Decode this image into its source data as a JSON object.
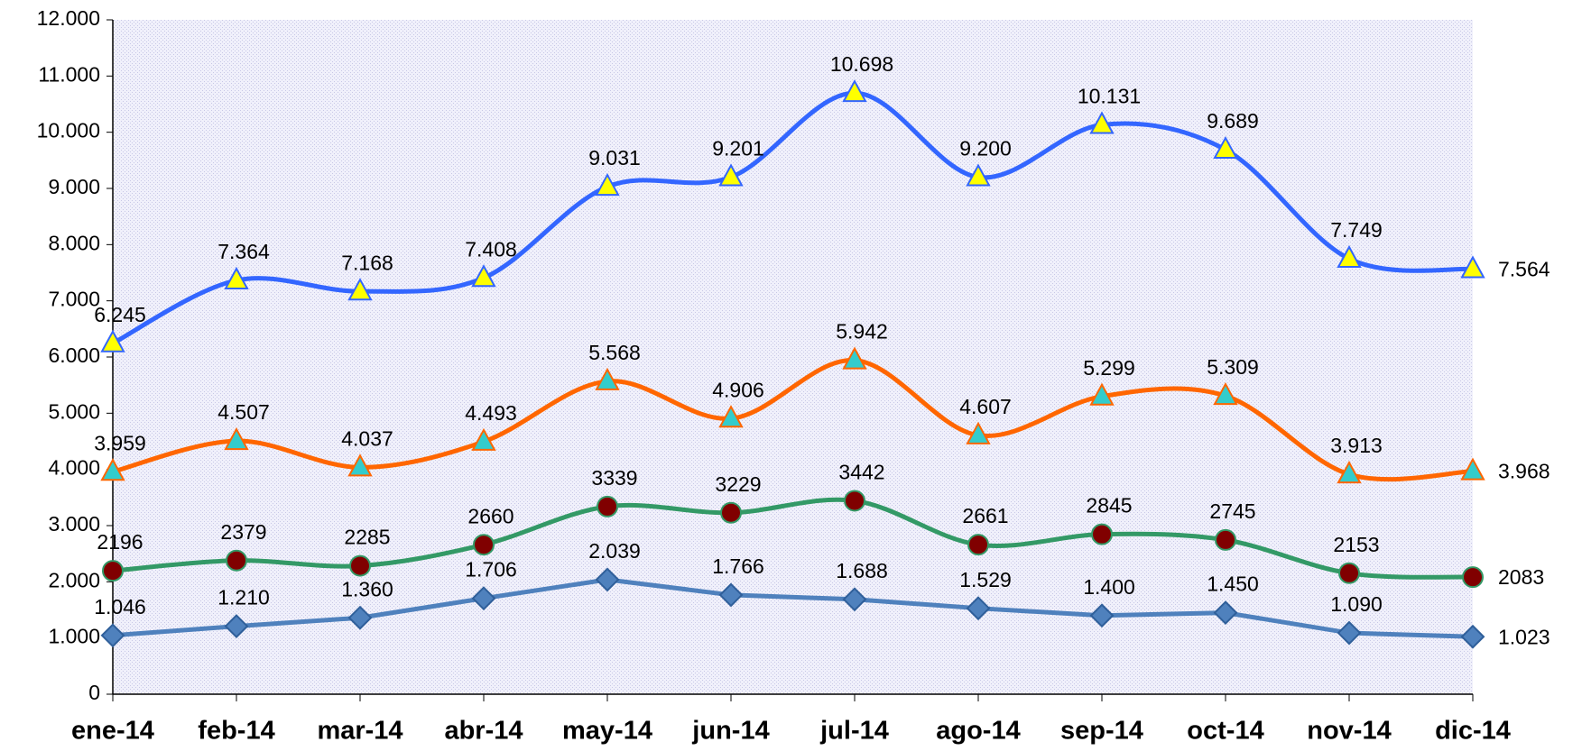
{
  "chart_data": {
    "type": "line",
    "categories": [
      "ene-14",
      "feb-14",
      "mar-14",
      "abr-14",
      "may-14",
      "jun-14",
      "jul-14",
      "ago-14",
      "sep-14",
      "oct-14",
      "nov-14",
      "dic-14"
    ],
    "ylim": [
      0,
      12000
    ],
    "yticks": [
      0,
      {
        "value": 1000,
        "label": "1.000"
      },
      {
        "value": 2000,
        "label": "2.000"
      },
      {
        "value": 3000,
        "label": "3.000"
      },
      {
        "value": 4000,
        "label": "4.000"
      },
      {
        "value": 5000,
        "label": "5.000"
      },
      {
        "value": 6000,
        "label": "6.000"
      },
      {
        "value": 7000,
        "label": "7.000"
      },
      {
        "value": 8000,
        "label": "8.000"
      },
      {
        "value": 9000,
        "label": "9.000"
      },
      {
        "value": 10000,
        "label": "10.000"
      },
      {
        "value": 11000,
        "label": "11.000"
      },
      {
        "value": 12000,
        "label": "12.000"
      }
    ],
    "grid": false,
    "series": [
      {
        "color": "#3366ff",
        "smooth": true,
        "marker": "triangle",
        "marker_color": "#ffff00",
        "values": [
          6245,
          7364,
          7168,
          7408,
          9031,
          9201,
          10698,
          9200,
          10131,
          9689,
          7749,
          7564
        ],
        "value_labels": [
          "6.245",
          "7.364",
          "7.168",
          "7.408",
          "9.031",
          "9.201",
          "10.698",
          "9.200",
          "10.131",
          "9.689",
          "7.749",
          "7.564"
        ]
      },
      {
        "color": "#ff6600",
        "smooth": true,
        "marker": "triangle",
        "marker_color": "#33cccc",
        "values": [
          3959,
          4507,
          4037,
          4493,
          5568,
          4906,
          5942,
          4607,
          5299,
          5309,
          3913,
          3968
        ],
        "value_labels": [
          "3.959",
          "4.507",
          "4.037",
          "4.493",
          "5.568",
          "4.906",
          "5.942",
          "4.607",
          "5.299",
          "5.309",
          "3.913",
          "3.968"
        ]
      },
      {
        "color": "#339966",
        "smooth": true,
        "marker": "circle",
        "marker_color": "#800000",
        "values": [
          2196,
          2379,
          2285,
          2660,
          3339,
          3229,
          3442,
          2661,
          2845,
          2745,
          2153,
          2083
        ]
      },
      {
        "color": "#4f81bd",
        "smooth": false,
        "marker": "diamond",
        "marker_color": "#4f81bd",
        "values": [
          1046,
          1210,
          1360,
          1706,
          2039,
          1766,
          1688,
          1529,
          1400,
          1450,
          1090,
          1023
        ],
        "value_labels": [
          "1.046",
          "1.210",
          "1.360",
          "1.706",
          "2.039",
          "1.766",
          "1.688",
          "1.529",
          "1.400",
          "1.450",
          "1.090",
          "1.023"
        ]
      }
    ]
  }
}
